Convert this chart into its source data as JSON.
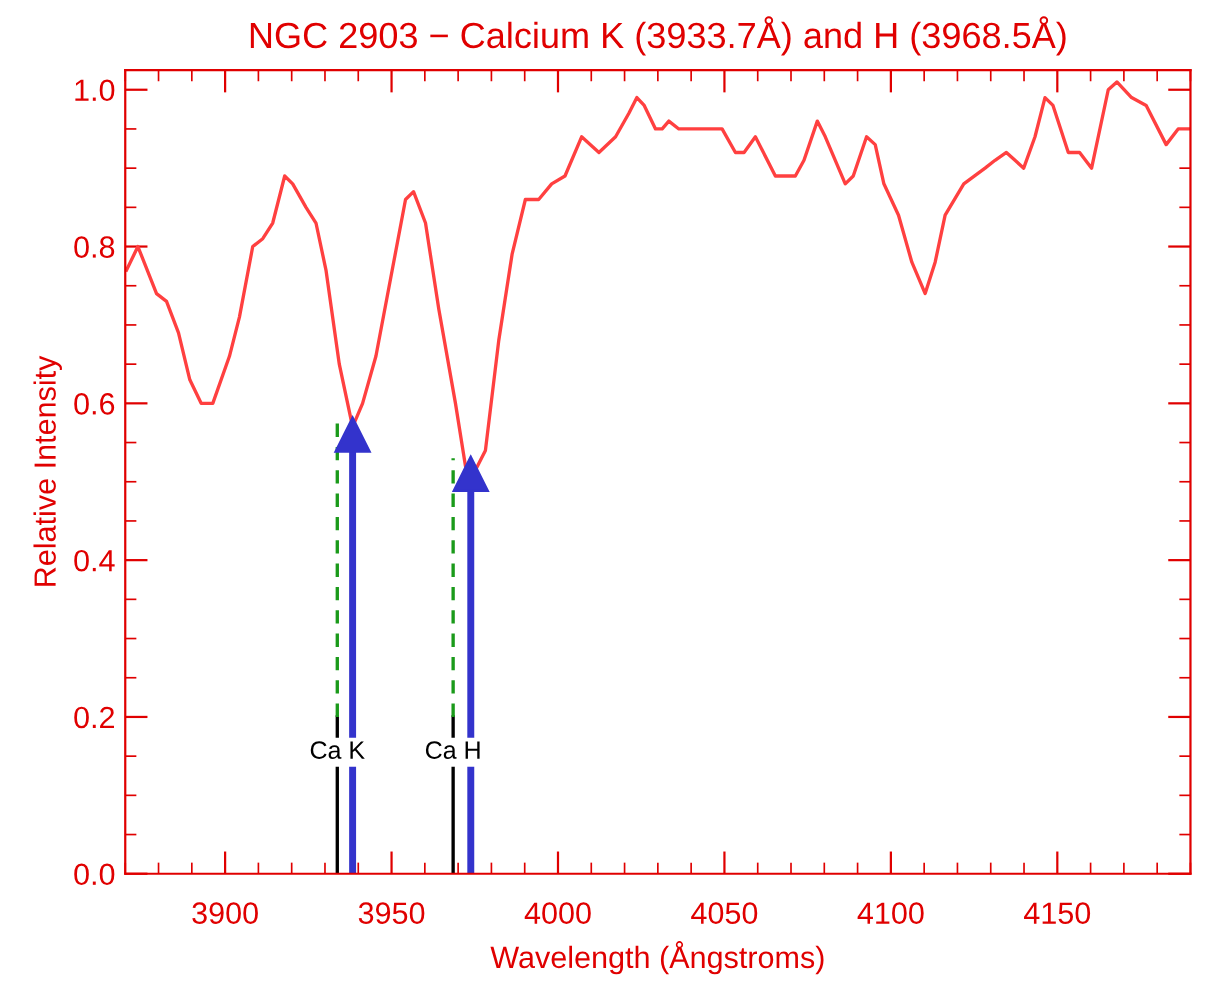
{
  "chart_data": {
    "type": "line",
    "title": "NGC 2903 − Calcium K (3933.7Å) and H (3968.5Å)",
    "xlabel": "Wavelength (Ångstroms)",
    "ylabel": "Relative Intensity",
    "xlim": [
      3870,
      4190
    ],
    "xticks": [
      3900,
      3950,
      4000,
      4050,
      4100,
      4150
    ],
    "ylim": [
      0,
      1.025
    ],
    "yticks": [
      {
        "value": 0,
        "label": "0.0"
      },
      0.2,
      0.4,
      0.6,
      0.8,
      {
        "value": 1,
        "label": "1.0"
      }
    ],
    "grid": false,
    "legend": false,
    "series": [
      {
        "color": "#ff4040",
        "x": [
          3870.4,
          3873.8,
          3879.4,
          3882.4,
          3886.0,
          3889.4,
          3892.8,
          3896.3,
          3901.3,
          3904.3,
          3908.3,
          3911.3,
          3914.3,
          3917.9,
          3920.3,
          3924.3,
          3927.3,
          3930.3,
          3934.3,
          3938.3,
          3941.3,
          3945.3,
          3950.2,
          3954.2,
          3956.6,
          3960.2,
          3964.2,
          3969.2,
          3972.2,
          3974.6,
          3978.2,
          3982.2,
          3986.2,
          3990.2,
          3994.2,
          3998.1,
          4002.1,
          4007.1,
          4012.3,
          4017.3,
          4021.3,
          4023.7,
          4025.9,
          4029.3,
          4031.3,
          4033.3,
          4036.3,
          4042.3,
          4049.3,
          4053.3,
          4055.9,
          4059.3,
          4065.3,
          4071.3,
          4073.9,
          4077.9,
          4080.3,
          4086.3,
          4088.7,
          4092.7,
          4095.3,
          4097.9,
          4102.3,
          4106.3,
          4110.3,
          4113.3,
          4116.3,
          4121.9,
          4128.3,
          4131.3,
          4134.7,
          4137.3,
          4139.9,
          4143.3,
          4146.3,
          4148.7,
          4153.3,
          4156.7,
          4160.3,
          4165.3,
          4167.9,
          4172.3,
          4176.7,
          4182.7,
          4186.3,
          4189.5
        ],
        "values": [
          0.77,
          0.8,
          0.74,
          0.73,
          0.69,
          0.63,
          0.6,
          0.6,
          0.66,
          0.71,
          0.8,
          0.81,
          0.83,
          0.89,
          0.88,
          0.85,
          0.83,
          0.77,
          0.65,
          0.57,
          0.6,
          0.66,
          0.77,
          0.86,
          0.87,
          0.83,
          0.72,
          0.6,
          0.52,
          0.51,
          0.54,
          0.68,
          0.79,
          0.86,
          0.86,
          0.88,
          0.89,
          0.94,
          0.92,
          0.94,
          0.97,
          0.99,
          0.98,
          0.95,
          0.95,
          0.96,
          0.95,
          0.95,
          0.95,
          0.92,
          0.92,
          0.94,
          0.89,
          0.89,
          0.91,
          0.96,
          0.94,
          0.88,
          0.89,
          0.94,
          0.93,
          0.88,
          0.84,
          0.78,
          0.74,
          0.78,
          0.84,
          0.88,
          0.9,
          0.91,
          0.92,
          0.91,
          0.9,
          0.94,
          0.99,
          0.98,
          0.92,
          0.92,
          0.9,
          1.0,
          1.01,
          0.99,
          0.98,
          0.93,
          0.95,
          0.95
        ]
      },
      {
        "type": "line",
        "color": "#000000",
        "x": [
          3933.7,
          3933.7
        ],
        "values": [
          0,
          0.2
        ]
      },
      {
        "type": "line",
        "color": "#000000",
        "x": [
          3968.5,
          3968.5
        ],
        "values": [
          0,
          0.2
        ]
      },
      {
        "type": "line",
        "color": "#1a9a1a",
        "line_style": "dashed",
        "x": [
          3933.7,
          3933.7
        ],
        "values": [
          0.2,
          0.58
        ]
      },
      {
        "type": "line",
        "color": "#1a9a1a",
        "line_style": "dashed",
        "x": [
          3968.5,
          3968.5
        ],
        "values": [
          0.2,
          0.53
        ]
      },
      {
        "type": "line",
        "marker": "triangle",
        "color": "#3333cc",
        "x": [
          3938.3,
          3938.3
        ],
        "values": [
          0,
          0.56
        ]
      },
      {
        "type": "line",
        "marker": "triangle",
        "color": "#3333cc",
        "x": [
          3973.8,
          3973.8
        ],
        "values": [
          0,
          0.51
        ]
      }
    ],
    "annotations": [
      {
        "text": "Ca K",
        "x": 3933.7,
        "y": 0.155
      },
      {
        "text": "Ca H",
        "x": 3968.5,
        "y": 0.155
      }
    ]
  }
}
